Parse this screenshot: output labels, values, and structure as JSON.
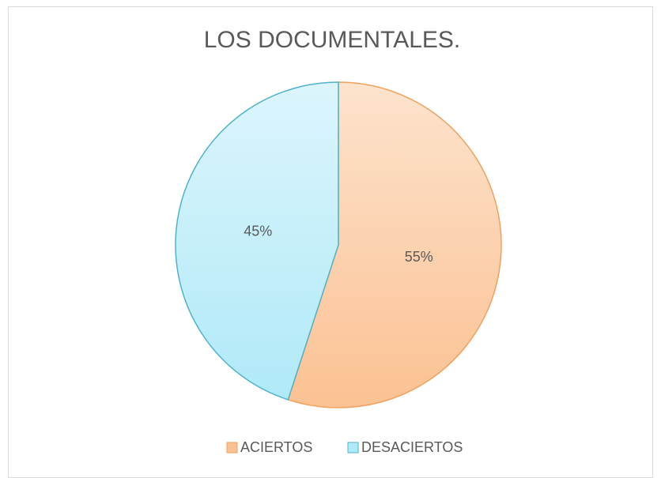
{
  "chart_data": {
    "type": "pie",
    "title": "LOS DOCUMENTALES.",
    "categories": [
      "ACIERTOS",
      "DESACIERTOS"
    ],
    "values": [
      55,
      45
    ],
    "value_labels": [
      "55%",
      "45%"
    ],
    "colors": [
      "#fbc193",
      "#b0e9f8"
    ],
    "legend": "bottom"
  }
}
